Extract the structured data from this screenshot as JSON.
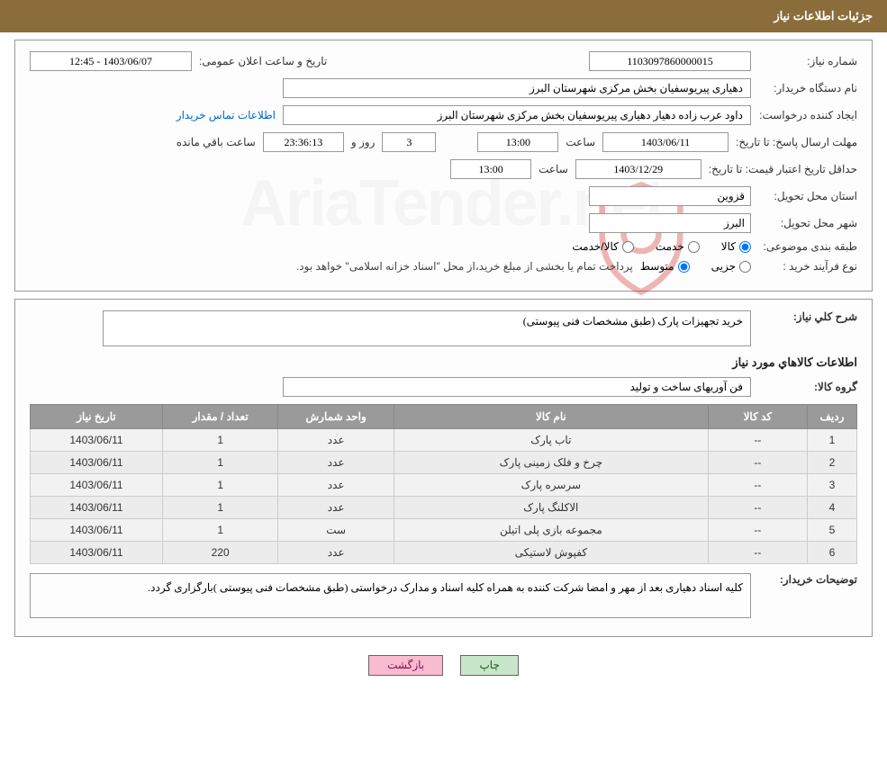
{
  "header": {
    "title": "جزئیات اطلاعات نیاز"
  },
  "watermark_text": "AriaTender.net",
  "shield_color": "#d32f2f",
  "form": {
    "need_no_label": "شماره نیاز:",
    "need_no": "1103097860000015",
    "announce_label": "تاریخ و ساعت اعلان عمومی:",
    "announce_value": "1403/06/07 - 12:45",
    "buyer_dev_label": "نام دستگاه خریدار:",
    "buyer_dev": "دهیاری پیریوسفیان بخش مرکزی شهرستان البرز",
    "requester_label": "ایجاد کننده درخواست:",
    "requester": "داود عرب زاده دهیار دهیاری پیریوسفیان بخش مرکزی شهرستان البرز",
    "contact_link": "اطلاعات تماس خریدار",
    "deadline_label": "مهلت ارسال پاسخ: تا تاریخ:",
    "deadline_date": "1403/06/11",
    "time_label": "ساعت",
    "deadline_time": "13:00",
    "days_value": "3",
    "days_and_label": "روز و",
    "countdown": "23:36:13",
    "remain_label": "ساعت باقي مانده",
    "valid_label": "حداقل تاریخ اعتبار قیمت: تا تاریخ:",
    "valid_date": "1403/12/29",
    "valid_time": "13:00",
    "province_label": "استان محل تحویل:",
    "province": "قزوین",
    "city_label": "شهر محل تحویل:",
    "city": "البرز",
    "class_label": "طبقه بندی موضوعی:",
    "class_goods": "کالا",
    "class_service": "خدمت",
    "class_both": "کالا/خدمت",
    "proc_label": "نوع فرآیند خرید :",
    "proc_partial": "جزیی",
    "proc_medium": "متوسط",
    "proc_note": "پرداخت تمام یا بخشی از مبلغ خرید،از محل \"اسناد خزانه اسلامی\" خواهد بود."
  },
  "section2": {
    "desc_label": "شرح کلي نياز:",
    "desc_text": "خرید تجهیزات پارک (طبق مشخصات فنی پیوستی)",
    "goods_info_label": "اطلاعات کالاهاي مورد نياز",
    "group_label": "گروه کالا:",
    "group_value": "فن آوریهای ساخت و تولید",
    "table": {
      "columns": [
        "ردیف",
        "کد کالا",
        "نام کالا",
        "واحد شمارش",
        "تعداد / مقدار",
        "تاریخ نیاز"
      ],
      "col_widths": [
        "6%",
        "12%",
        "38%",
        "14%",
        "14%",
        "16%"
      ],
      "rows": [
        [
          "1",
          "--",
          "تاب پارک",
          "عدد",
          "1",
          "1403/06/11"
        ],
        [
          "2",
          "--",
          "چرخ و فلک زمینی پارک",
          "عدد",
          "1",
          "1403/06/11"
        ],
        [
          "3",
          "--",
          "سرسره پارک",
          "عدد",
          "1",
          "1403/06/11"
        ],
        [
          "4",
          "--",
          "الاکلنگ پارک",
          "عدد",
          "1",
          "1403/06/11"
        ],
        [
          "5",
          "--",
          "مجموعه بازی پلی اتیلن",
          "ست",
          "1",
          "1403/06/11"
        ],
        [
          "6",
          "--",
          "کفپوش لاستیکی",
          "عدد",
          "220",
          "1403/06/11"
        ]
      ]
    },
    "buyer_note_label": "توضیحات خریدار:",
    "buyer_note": "کلیه اسناد دهیاری بعد از مهر و امضا شرکت کننده به همراه کلیه اسناد و مدارک درخواستی (طبق مشخصات فنی پیوستی )بارگزاری گردد."
  },
  "buttons": {
    "print": "چاپ",
    "back": "بازگشت"
  },
  "colors": {
    "header_bg": "#8a6d3b",
    "th_bg": "#9a9a9a",
    "td_bg": "#f2f2f2",
    "print_bg": "#c8e6c9",
    "back_bg": "#f8bbd0"
  }
}
